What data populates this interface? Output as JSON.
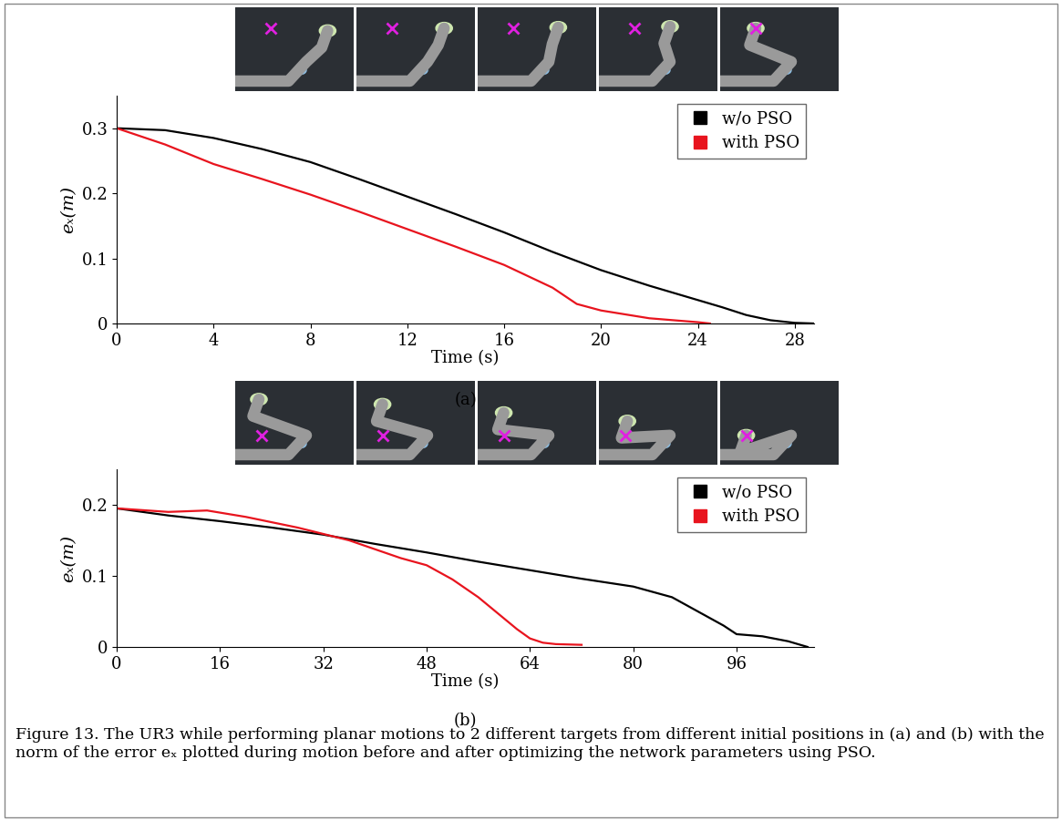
{
  "chart_data": [
    {
      "type": "line",
      "panel": "(a)",
      "x_label": "Time (s)",
      "y_label": "eₓ(m)",
      "xlim": [
        0,
        28.8
      ],
      "xticks": [
        0,
        4,
        8,
        12,
        16,
        20,
        24,
        28
      ],
      "ylim": [
        0,
        0.35
      ],
      "yticks": [
        0,
        0.1,
        0.2,
        0.3
      ],
      "legend": "upper right",
      "series": [
        {
          "name": "w/o PSO",
          "color": "#000000",
          "x": [
            0,
            2,
            4,
            6,
            8,
            10,
            12,
            14,
            16,
            18,
            20,
            22,
            24,
            25,
            26,
            27,
            28,
            28.8
          ],
          "values": [
            0.3,
            0.297,
            0.285,
            0.268,
            0.248,
            0.222,
            0.195,
            0.168,
            0.14,
            0.11,
            0.082,
            0.058,
            0.036,
            0.025,
            0.013,
            0.005,
            0.001,
            0.0
          ]
        },
        {
          "name": "with PSO",
          "color": "#e8141e",
          "x": [
            0,
            2,
            4,
            6,
            8,
            10,
            12,
            14,
            16,
            18,
            19,
            20,
            22,
            24,
            24.5
          ],
          "values": [
            0.3,
            0.275,
            0.245,
            0.222,
            0.198,
            0.172,
            0.145,
            0.118,
            0.09,
            0.055,
            0.03,
            0.02,
            0.008,
            0.002,
            0.0
          ]
        }
      ]
    },
    {
      "type": "line",
      "panel": "(b)",
      "x_label": "Time (s)",
      "y_label": "eₓ(m)",
      "xlim": [
        0,
        108
      ],
      "xticks": [
        0,
        16,
        32,
        48,
        64,
        80,
        96
      ],
      "ylim": [
        0,
        0.25
      ],
      "yticks": [
        0,
        0.1,
        0.2
      ],
      "legend": "upper right",
      "series": [
        {
          "name": "w/o PSO",
          "color": "#000000",
          "x": [
            0,
            8,
            16,
            24,
            32,
            40,
            48,
            56,
            64,
            72,
            80,
            86,
            90,
            94,
            96,
            100,
            104,
            107
          ],
          "values": [
            0.195,
            0.185,
            0.177,
            0.168,
            0.158,
            0.145,
            0.133,
            0.12,
            0.108,
            0.096,
            0.085,
            0.07,
            0.05,
            0.03,
            0.018,
            0.015,
            0.008,
            0.0
          ]
        },
        {
          "name": "with PSO",
          "color": "#e8141e",
          "x": [
            0,
            8,
            14,
            20,
            28,
            36,
            44,
            48,
            52,
            56,
            60,
            62,
            64,
            66,
            68,
            72
          ],
          "values": [
            0.195,
            0.19,
            0.192,
            0.183,
            0.168,
            0.15,
            0.125,
            0.115,
            0.095,
            0.07,
            0.04,
            0.025,
            0.012,
            0.006,
            0.004,
            0.003
          ]
        }
      ]
    }
  ],
  "caption": "Figure 13. The UR3 while performing planar motions to 2 different targets from different initial positions in (a) and (b) with the norm of the error eₓ plotted during motion before and after optimizing the network parameters using PSO."
}
